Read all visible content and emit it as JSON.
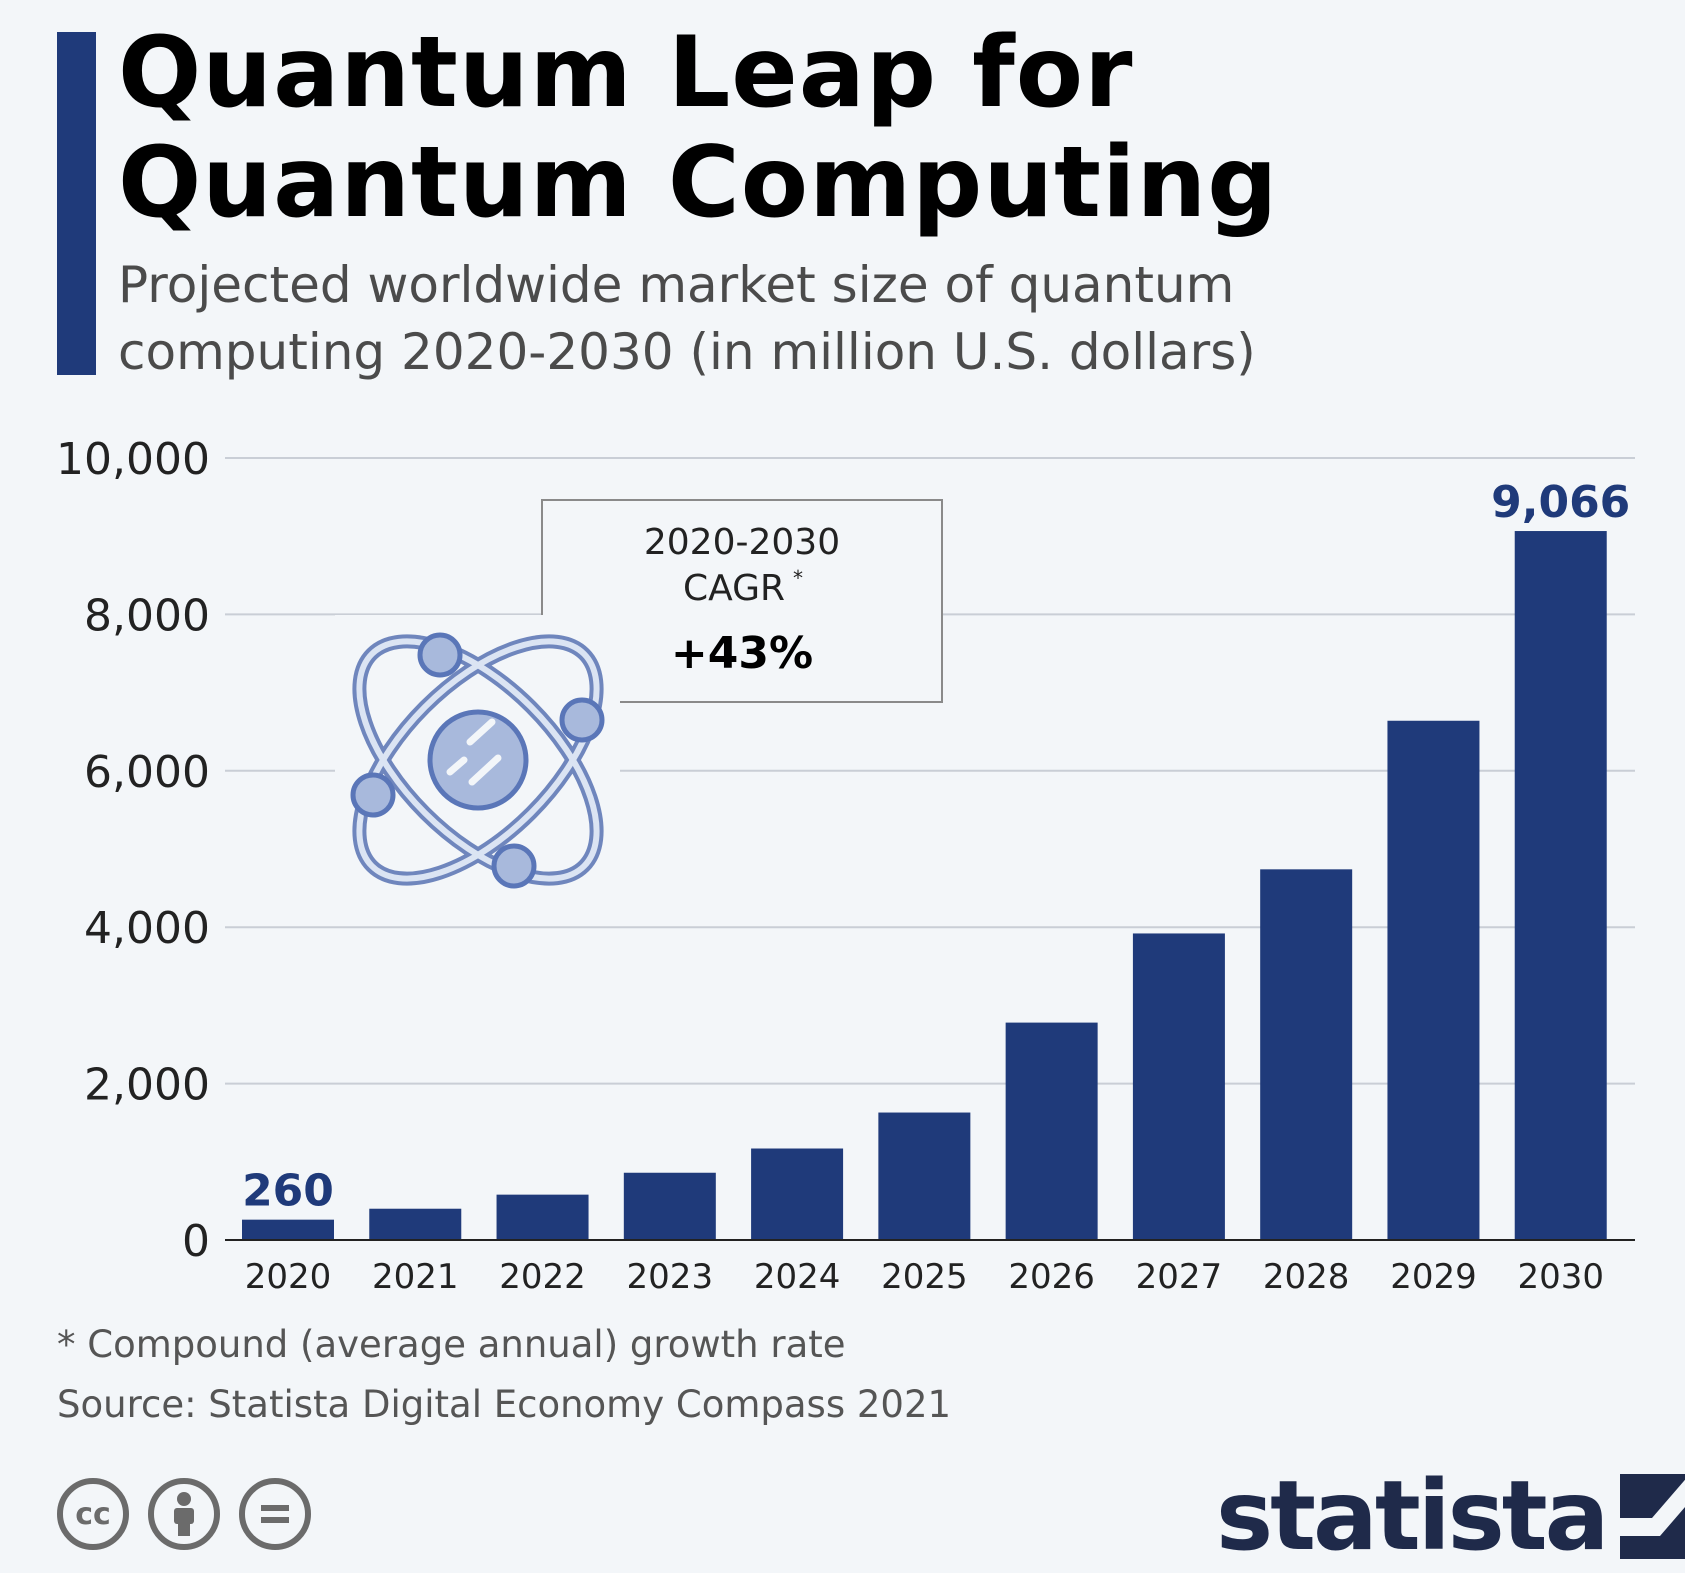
{
  "header": {
    "title_line1": "Quantum Leap for",
    "title_line2": "Quantum Computing",
    "subtitle_line1": "Projected worldwide market size of quantum",
    "subtitle_line2": "computing 2020-2030 (in million U.S. dollars)"
  },
  "callout": {
    "line1": "2020-2030",
    "line2": "CAGR",
    "sup": "*",
    "value": "+43%"
  },
  "chart_data": {
    "type": "bar",
    "title": "Quantum Leap for Quantum Computing",
    "subtitle": "Projected worldwide market size of quantum computing 2020-2030 (in million U.S. dollars)",
    "categories": [
      "2020",
      "2021",
      "2022",
      "2023",
      "2024",
      "2025",
      "2026",
      "2027",
      "2028",
      "2029",
      "2030"
    ],
    "values": [
      260,
      400,
      580,
      860,
      1170,
      1630,
      2780,
      3920,
      4740,
      6640,
      9066
    ],
    "value_labels": {
      "0": "260",
      "10": "9,066"
    },
    "y_ticks": [
      "0",
      "2,000",
      "4,000",
      "6,000",
      "8,000",
      "10,000"
    ],
    "ylim": [
      0,
      10000
    ],
    "grid": true,
    "bar_color": "#1f3a7a",
    "label_color": "#1f3a7a"
  },
  "footer": {
    "footnote": "* Compound (average annual) growth rate",
    "source": "Source: Statista Digital Economy Compass 2021",
    "license_icons": [
      "cc-icon",
      "attribution-icon",
      "no-derivatives-icon"
    ],
    "cc_label": "cc",
    "logo_text": "statista"
  }
}
